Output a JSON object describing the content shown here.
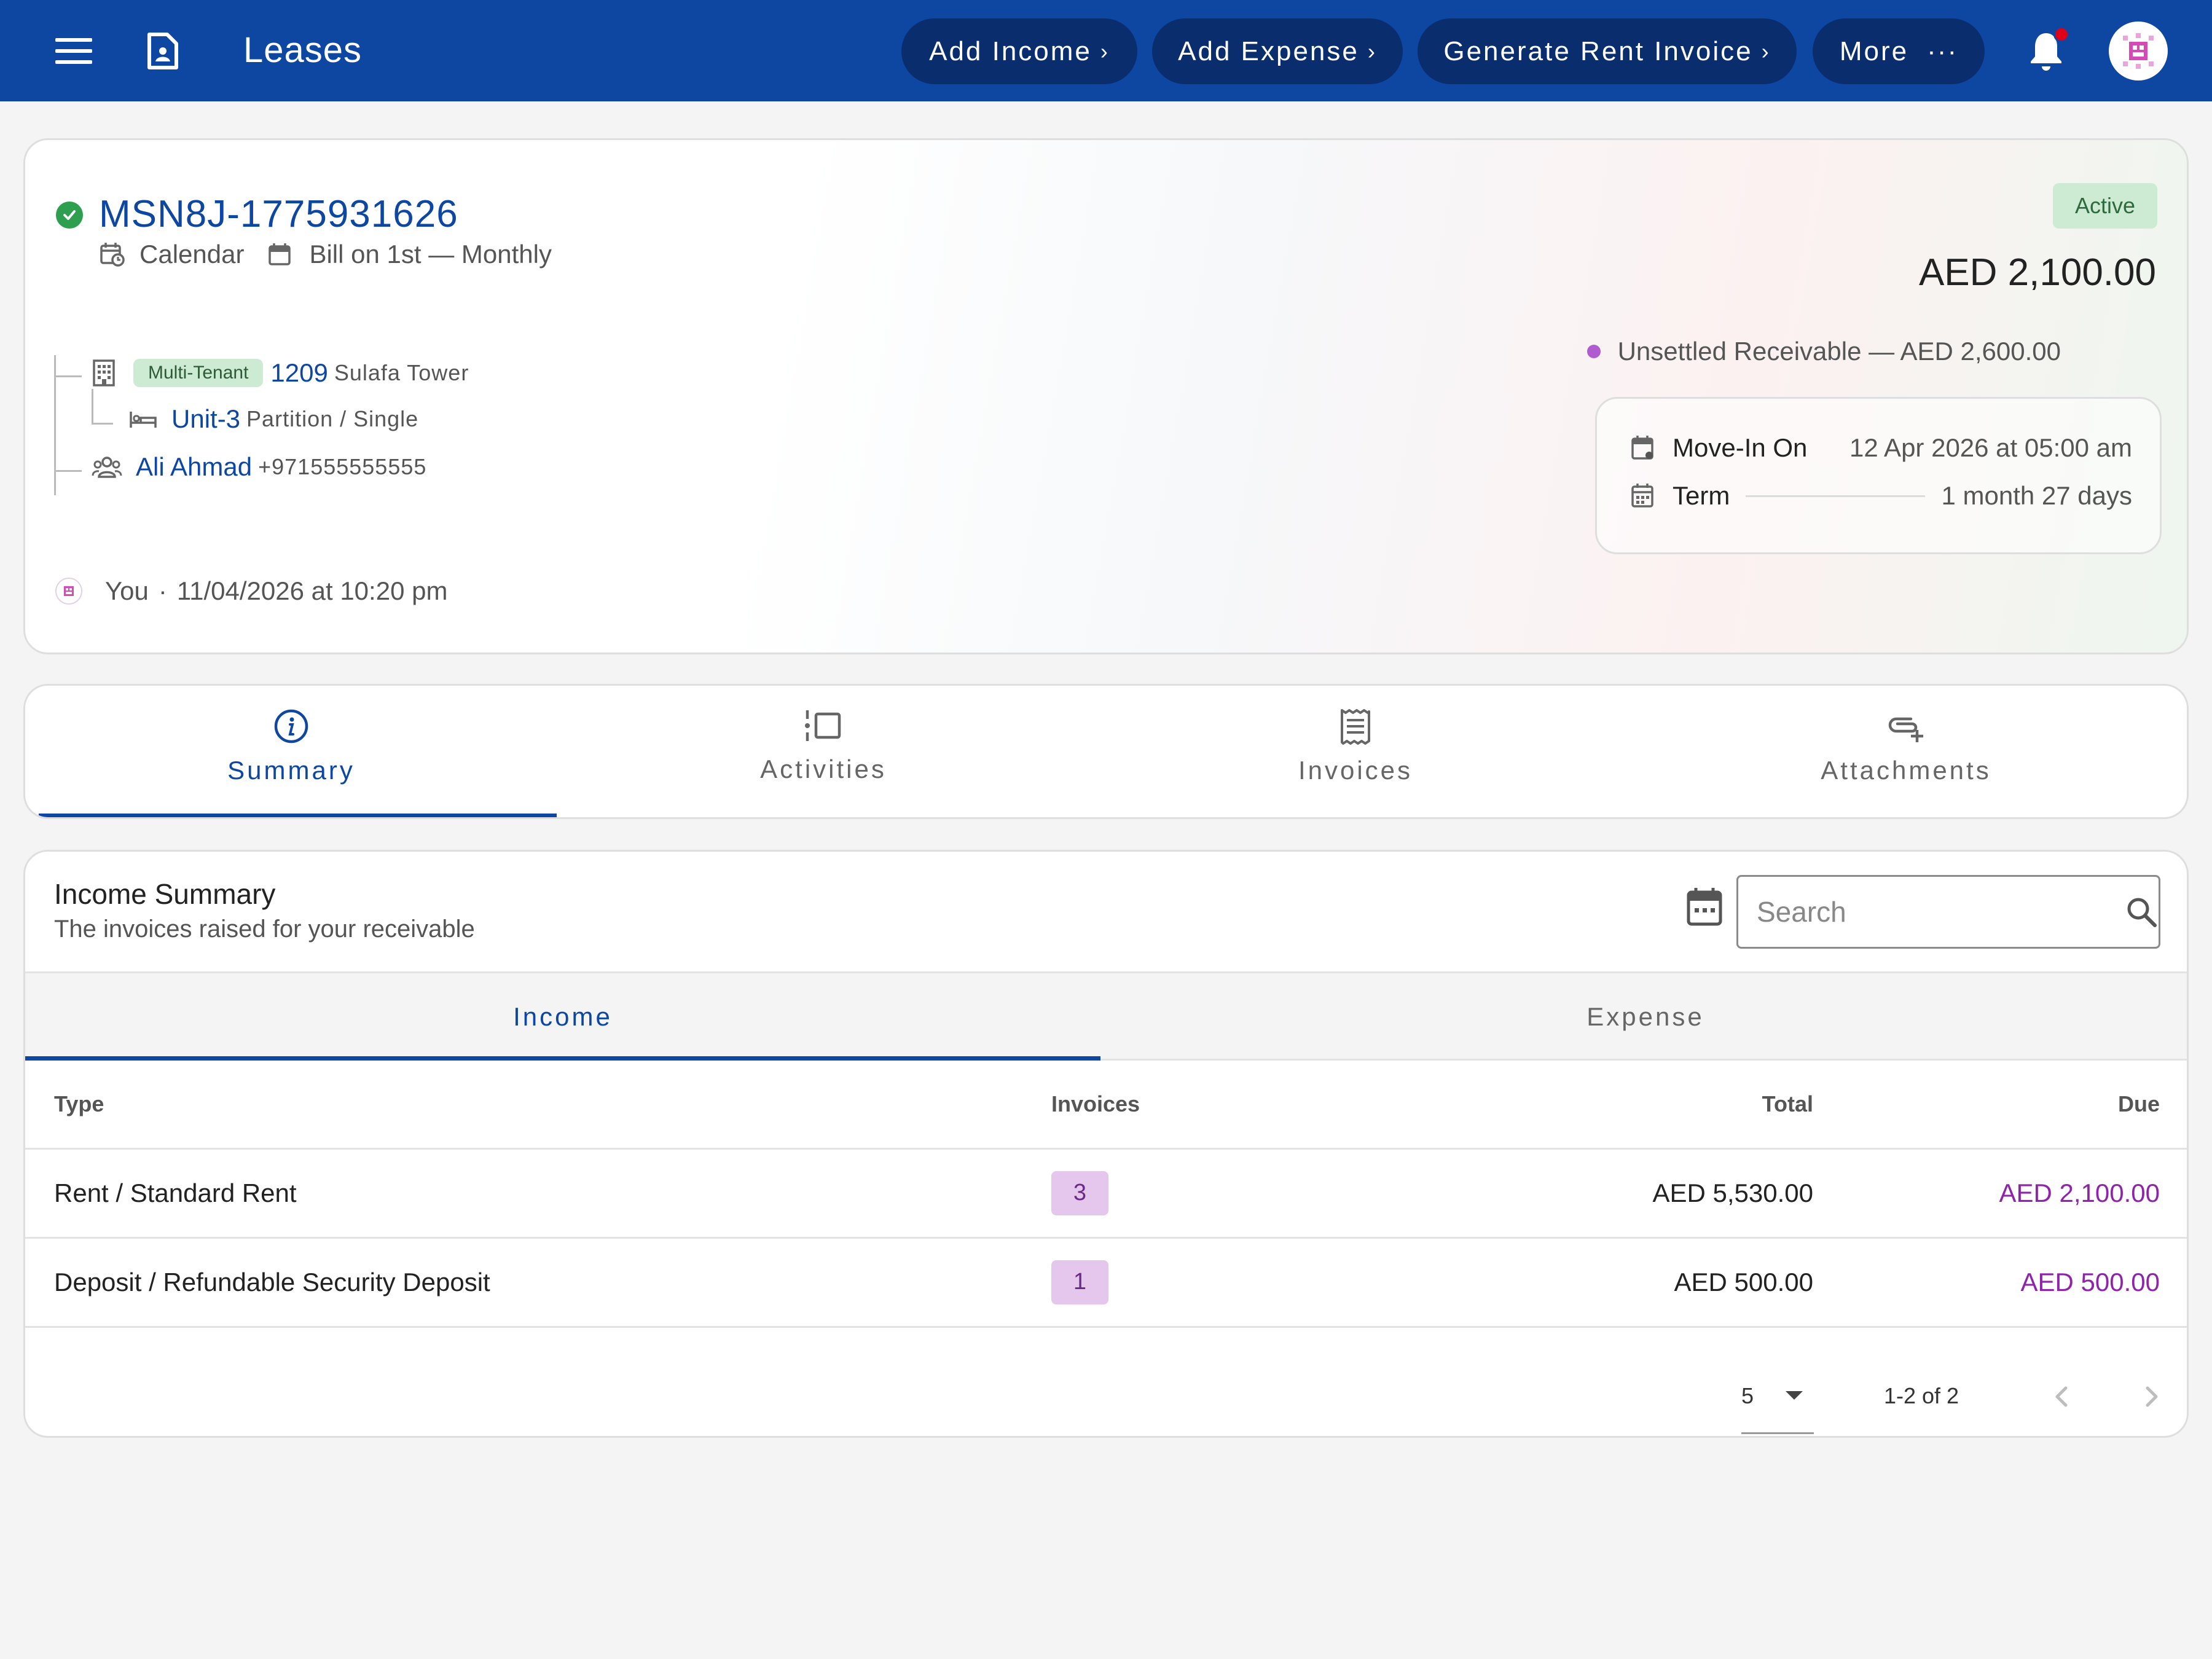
{
  "topbar": {
    "title": "Leases",
    "actions": [
      {
        "label": "Add Income",
        "chevron": "›"
      },
      {
        "label": "Add Expense",
        "chevron": "›"
      },
      {
        "label": "Generate Rent Invoice",
        "chevron": "›"
      },
      {
        "label": "More",
        "chevron": "···"
      }
    ],
    "icons": [
      "menu-icon",
      "document-icon",
      "bell-icon",
      "avatar"
    ],
    "colors": {
      "bar": "#0d47a1",
      "pill": "#0a2d6e",
      "notification_dot": "#e0001a"
    }
  },
  "lease": {
    "id": "MSN8J-1775931626",
    "calendar_label": "Calendar",
    "billing_label": "Bill on 1st — Monthly",
    "status": "Active",
    "amount": "AED 2,100.00",
    "unsettled": "Unsettled Receivable — AED 2,600.00",
    "property": {
      "tag": "Multi-Tenant",
      "number": "1209",
      "name": "Sulafa Tower"
    },
    "unit": {
      "name": "Unit-3",
      "detail": "Partition / Single"
    },
    "tenant": {
      "name": "Ali Ahmad",
      "phone": "+971555555555"
    },
    "move_in": {
      "label": "Move-In On",
      "value": "12 Apr 2026 at 05:00 am"
    },
    "term": {
      "label": "Term",
      "value": "1 month 27 days"
    },
    "created_by": "You",
    "separator": "·",
    "created_at": "11/04/2026 at 10:20 pm",
    "colors": {
      "status_bg": "#cdebd3",
      "link": "#0d47a1",
      "unsettled_dot": "#b05cd1"
    }
  },
  "tabs": [
    {
      "label": "Summary",
      "icon": "info-icon",
      "active": true
    },
    {
      "label": "Activities",
      "icon": "activities-icon",
      "active": false
    },
    {
      "label": "Invoices",
      "icon": "invoice-icon",
      "active": false
    },
    {
      "label": "Attachments",
      "icon": "attachment-icon",
      "active": false
    }
  ],
  "income_summary": {
    "title": "Income Summary",
    "subtitle": "The invoices raised for your receivable",
    "search_placeholder": "Search",
    "subtabs": [
      {
        "label": "Income",
        "active": true
      },
      {
        "label": "Expense",
        "active": false
      }
    ],
    "columns": [
      "Type",
      "Invoices",
      "Total",
      "Due"
    ],
    "rows": [
      {
        "type": "Rent / Standard Rent",
        "invoices": "3",
        "total": "AED 5,530.00",
        "due": "AED 2,100.00"
      },
      {
        "type": "Deposit / Refundable Security Deposit",
        "invoices": "1",
        "total": "AED 500.00",
        "due": "AED 500.00"
      }
    ],
    "pagination": {
      "page_size": "5",
      "range": "1-2 of 2"
    },
    "colors": {
      "badge_bg": "#e5c6ec",
      "due": "#8e24aa"
    }
  }
}
